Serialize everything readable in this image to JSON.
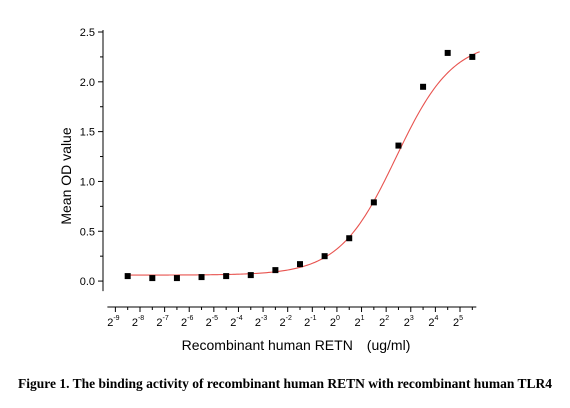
{
  "chart_data": {
    "type": "scatter",
    "xlabel": "Recombinant human  RETN　(ug/ml)",
    "ylabel": "Mean OD value",
    "x_scale": "log2",
    "xlim": [
      -9.3,
      6.3
    ],
    "ylim": [
      -0.2,
      2.5
    ],
    "x_ticks": [
      {
        "base": "2",
        "exp": "-9"
      },
      {
        "base": "2",
        "exp": "-8"
      },
      {
        "base": "2",
        "exp": "-7"
      },
      {
        "base": "2",
        "exp": "-6"
      },
      {
        "base": "2",
        "exp": "-5"
      },
      {
        "base": "2",
        "exp": "-4"
      },
      {
        "base": "2",
        "exp": "-3"
      },
      {
        "base": "2",
        "exp": "-2"
      },
      {
        "base": "2",
        "exp": "-1"
      },
      {
        "base": "2",
        "exp": "0"
      },
      {
        "base": "2",
        "exp": "1"
      },
      {
        "base": "2",
        "exp": "2"
      },
      {
        "base": "2",
        "exp": "3"
      },
      {
        "base": "2",
        "exp": "4"
      },
      {
        "base": "2",
        "exp": "5"
      }
    ],
    "y_ticks": [
      "0.0",
      "0.5",
      "1.0",
      "1.5",
      "2.0",
      "2.5"
    ],
    "series": [
      {
        "marker": "square",
        "color": "#000000",
        "x_log2": [
          -8.5,
          -7.5,
          -6.5,
          -5.5,
          -4.5,
          -3.5,
          -2.5,
          -1.5,
          -0.5,
          0.5,
          1.5,
          2.5,
          3.5,
          4.5,
          5.5
        ],
        "y": [
          0.05,
          0.03,
          0.03,
          0.04,
          0.05,
          0.06,
          0.11,
          0.17,
          0.25,
          0.43,
          0.79,
          1.36,
          1.95,
          2.29,
          2.25
        ]
      }
    ],
    "fit_curve": {
      "type": "4PL",
      "color": "#e8534f",
      "bottom": 0.06,
      "top": 2.42,
      "ec50_log2": 2.4,
      "hill": 1.25
    }
  },
  "caption": "Figure 1. The binding activity of recombinant human RETN with recombinant human TLR4"
}
